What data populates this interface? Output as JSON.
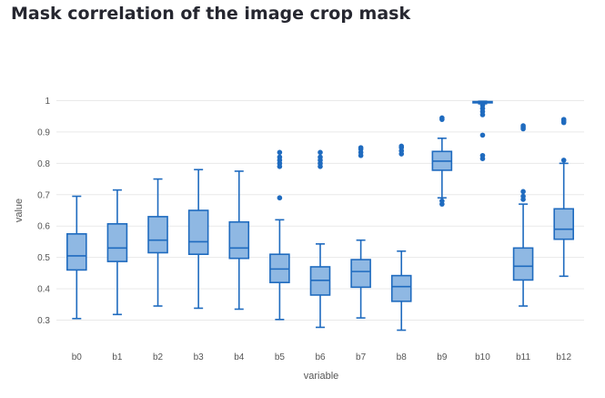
{
  "page": {
    "title": "Mask correlation of the image crop mask"
  },
  "chart_data": {
    "type": "box",
    "title": "Mask correlation of the image crop mask",
    "xlabel": "variable",
    "ylabel": "value",
    "ylim": [
      0.27,
      1.0
    ],
    "yticks": [
      0.3,
      0.4,
      0.5,
      0.6,
      0.7,
      0.8,
      0.9,
      1
    ],
    "ytick_labels": [
      "0.3",
      "0.4",
      "0.5",
      "0.6",
      "0.7",
      "0.8",
      "0.9",
      "1"
    ],
    "grid": true,
    "colors": {
      "box_fill": "#8fb8e3",
      "box_line": "#1f6bbf",
      "outlier": "#1f6bbf",
      "grid": "#e9e9e9"
    },
    "categories": [
      "b0",
      "b1",
      "b2",
      "b3",
      "b4",
      "b5",
      "b6",
      "b7",
      "b8",
      "b9",
      "b10",
      "b11",
      "b12"
    ],
    "boxes": [
      {
        "name": "b0",
        "min": 0.305,
        "q1": 0.46,
        "median": 0.505,
        "q3": 0.575,
        "max": 0.695,
        "outliers": []
      },
      {
        "name": "b1",
        "min": 0.318,
        "q1": 0.487,
        "median": 0.53,
        "q3": 0.607,
        "max": 0.715,
        "outliers": []
      },
      {
        "name": "b2",
        "min": 0.345,
        "q1": 0.515,
        "median": 0.555,
        "q3": 0.63,
        "max": 0.75,
        "outliers": []
      },
      {
        "name": "b3",
        "min": 0.338,
        "q1": 0.51,
        "median": 0.55,
        "q3": 0.65,
        "max": 0.78,
        "outliers": []
      },
      {
        "name": "b4",
        "min": 0.335,
        "q1": 0.497,
        "median": 0.53,
        "q3": 0.613,
        "max": 0.775,
        "outliers": []
      },
      {
        "name": "b5",
        "min": 0.302,
        "q1": 0.42,
        "median": 0.463,
        "q3": 0.51,
        "max": 0.62,
        "outliers": [
          0.69,
          0.79,
          0.8,
          0.81,
          0.82,
          0.835
        ]
      },
      {
        "name": "b6",
        "min": 0.277,
        "q1": 0.38,
        "median": 0.427,
        "q3": 0.47,
        "max": 0.543,
        "outliers": [
          0.79,
          0.8,
          0.81,
          0.82,
          0.835
        ]
      },
      {
        "name": "b7",
        "min": 0.307,
        "q1": 0.405,
        "median": 0.455,
        "q3": 0.493,
        "max": 0.555,
        "outliers": [
          0.825,
          0.835,
          0.845,
          0.85
        ]
      },
      {
        "name": "b8",
        "min": 0.268,
        "q1": 0.36,
        "median": 0.407,
        "q3": 0.442,
        "max": 0.52,
        "outliers": [
          0.83,
          0.84,
          0.85,
          0.855
        ]
      },
      {
        "name": "b9",
        "min": 0.69,
        "q1": 0.778,
        "median": 0.807,
        "q3": 0.838,
        "max": 0.88,
        "outliers": [
          0.67,
          0.68,
          0.94,
          0.945
        ]
      },
      {
        "name": "b10",
        "min": 0.99,
        "q1": 0.993,
        "median": 0.995,
        "q3": 0.997,
        "max": 0.998,
        "outliers": [
          0.815,
          0.825,
          0.89,
          0.955,
          0.965,
          0.975,
          0.985
        ]
      },
      {
        "name": "b11",
        "min": 0.345,
        "q1": 0.428,
        "median": 0.472,
        "q3": 0.53,
        "max": 0.67,
        "outliers": [
          0.685,
          0.695,
          0.71,
          0.91,
          0.915,
          0.92
        ]
      },
      {
        "name": "b12",
        "min": 0.44,
        "q1": 0.558,
        "median": 0.59,
        "q3": 0.655,
        "max": 0.8,
        "outliers": [
          0.81,
          0.93,
          0.935,
          0.94
        ]
      }
    ]
  }
}
